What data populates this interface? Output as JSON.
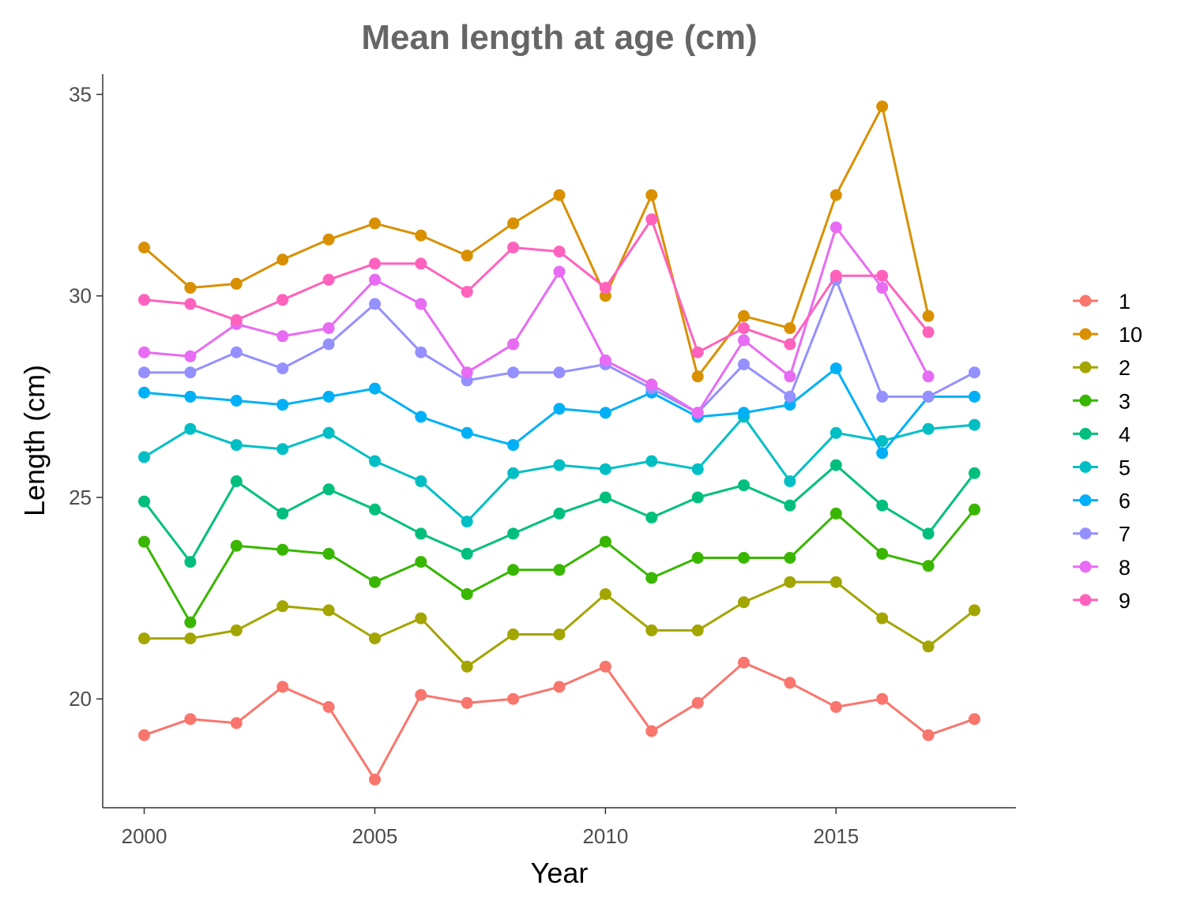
{
  "chart_data": {
    "type": "line",
    "title": "Mean length at age (cm)",
    "xlabel": "Year",
    "ylabel": "Length (cm)",
    "xlim": [
      1999.1,
      2018.9
    ],
    "ylim": [
      17.3,
      35.5
    ],
    "x_ticks": [
      2000,
      2005,
      2010,
      2015
    ],
    "y_ticks": [
      20,
      25,
      30,
      35
    ],
    "grid": false,
    "legend_position": "right",
    "x": [
      2000,
      2001,
      2002,
      2003,
      2004,
      2005,
      2006,
      2007,
      2008,
      2009,
      2010,
      2011,
      2012,
      2013,
      2014,
      2015,
      2016,
      2017,
      2018
    ],
    "series": [
      {
        "name": "1",
        "color": "#F8766D",
        "values": [
          19.1,
          19.5,
          19.4,
          20.3,
          19.8,
          18.0,
          20.1,
          19.9,
          20.0,
          20.3,
          20.8,
          19.2,
          19.9,
          20.9,
          20.4,
          19.8,
          20.0,
          19.1,
          19.5
        ]
      },
      {
        "name": "10",
        "color": "#D89000",
        "values": [
          31.2,
          30.2,
          30.3,
          30.9,
          31.4,
          31.8,
          31.5,
          31.0,
          31.8,
          32.5,
          30.0,
          32.5,
          28.0,
          29.5,
          29.2,
          32.5,
          34.7,
          29.5,
          null
        ]
      },
      {
        "name": "2",
        "color": "#A3A500",
        "values": [
          21.5,
          21.5,
          21.7,
          22.3,
          22.2,
          21.5,
          22.0,
          20.8,
          21.6,
          21.6,
          22.6,
          21.7,
          21.7,
          22.4,
          22.9,
          22.9,
          22.0,
          21.3,
          22.2
        ]
      },
      {
        "name": "3",
        "color": "#39B600",
        "values": [
          23.9,
          21.9,
          23.8,
          23.7,
          23.6,
          22.9,
          23.4,
          22.6,
          23.2,
          23.2,
          23.9,
          23.0,
          23.5,
          23.5,
          23.5,
          24.6,
          23.6,
          23.3,
          24.7
        ]
      },
      {
        "name": "4",
        "color": "#00BF7D",
        "values": [
          24.9,
          23.4,
          25.4,
          24.6,
          25.2,
          24.7,
          24.1,
          23.6,
          24.1,
          24.6,
          25.0,
          24.5,
          25.0,
          25.3,
          24.8,
          25.8,
          24.8,
          24.1,
          25.6
        ]
      },
      {
        "name": "5",
        "color": "#00BFC4",
        "values": [
          26.0,
          26.7,
          26.3,
          26.2,
          26.6,
          25.9,
          25.4,
          24.4,
          25.6,
          25.8,
          25.7,
          25.9,
          25.7,
          27.0,
          25.4,
          26.6,
          26.4,
          26.7,
          26.8
        ]
      },
      {
        "name": "6",
        "color": "#00B0F6",
        "values": [
          27.6,
          27.5,
          27.4,
          27.3,
          27.5,
          27.7,
          27.0,
          26.6,
          26.3,
          27.2,
          27.1,
          27.6,
          27.0,
          27.1,
          27.3,
          28.2,
          26.1,
          27.5,
          27.5
        ]
      },
      {
        "name": "7",
        "color": "#9590FF",
        "values": [
          28.1,
          28.1,
          28.6,
          28.2,
          28.8,
          29.8,
          28.6,
          27.9,
          28.1,
          28.1,
          28.3,
          27.7,
          27.1,
          28.3,
          27.5,
          30.4,
          27.5,
          27.5,
          28.1
        ]
      },
      {
        "name": "8",
        "color": "#E76BF3",
        "values": [
          28.6,
          28.5,
          29.3,
          29.0,
          29.2,
          30.4,
          29.8,
          28.1,
          28.8,
          30.6,
          28.4,
          27.8,
          27.1,
          28.9,
          28.0,
          31.7,
          30.2,
          28.0,
          null
        ]
      },
      {
        "name": "9",
        "color": "#FF62BC",
        "values": [
          29.9,
          29.8,
          29.4,
          29.9,
          30.4,
          30.8,
          30.8,
          30.1,
          31.2,
          31.1,
          30.2,
          31.9,
          28.6,
          29.2,
          28.8,
          30.5,
          30.5,
          29.1,
          null
        ]
      }
    ]
  }
}
